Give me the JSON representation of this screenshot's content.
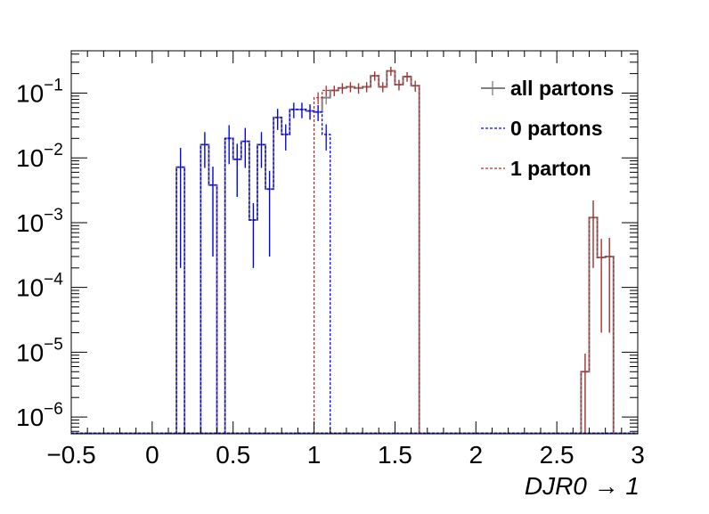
{
  "chart_data": {
    "type": "step",
    "title": "",
    "xlabel": "DJR0 → 1",
    "ylabel": "",
    "y_scale": "log",
    "xlim": [
      -0.5,
      3.0
    ],
    "ylim": [
      5.5e-07,
      0.45
    ],
    "bin_width": 0.05,
    "x_ticks": [
      {
        "value": -0.5,
        "label": "−0.5"
      },
      {
        "value": 0,
        "label": "0"
      },
      {
        "value": 0.5,
        "label": "0.5"
      },
      {
        "value": 1,
        "label": "1"
      },
      {
        "value": 1.5,
        "label": "1.5"
      },
      {
        "value": 2,
        "label": "2"
      },
      {
        "value": 2.5,
        "label": "2.5"
      },
      {
        "value": 3,
        "label": "3"
      }
    ],
    "y_ticks": [
      {
        "value": 1e-06,
        "base": "10",
        "exp": "−6"
      },
      {
        "value": 1e-05,
        "base": "10",
        "exp": "−5"
      },
      {
        "value": 0.0001,
        "base": "10",
        "exp": "−4"
      },
      {
        "value": 0.001,
        "base": "10",
        "exp": "−3"
      },
      {
        "value": 0.01,
        "base": "10",
        "exp": "−2"
      },
      {
        "value": 0.1,
        "base": "10",
        "exp": "−1"
      }
    ],
    "legend_position": "top-right",
    "series": [
      {
        "name": "all partons",
        "color": "#808080",
        "style": "solid",
        "bins": [
          {
            "x": 0.15,
            "y": 0.0072,
            "err": 0.007
          },
          {
            "x": 0.3,
            "y": 0.016,
            "err": 0.009
          },
          {
            "x": 0.35,
            "y": 0.0038,
            "err": 0.0035
          },
          {
            "x": 0.45,
            "y": 0.02,
            "err": 0.012
          },
          {
            "x": 0.5,
            "y": 0.0095,
            "err": 0.007
          },
          {
            "x": 0.55,
            "y": 0.018,
            "err": 0.011
          },
          {
            "x": 0.6,
            "y": 0.0011,
            "err": 0.0009
          },
          {
            "x": 0.65,
            "y": 0.016,
            "err": 0.009
          },
          {
            "x": 0.7,
            "y": 0.0033,
            "err": 0.003
          },
          {
            "x": 0.75,
            "y": 0.042,
            "err": 0.015
          },
          {
            "x": 0.8,
            "y": 0.023,
            "err": 0.01
          },
          {
            "x": 0.85,
            "y": 0.056,
            "err": 0.015
          },
          {
            "x": 0.9,
            "y": 0.056,
            "err": 0.015
          },
          {
            "x": 0.95,
            "y": 0.053,
            "err": 0.014
          },
          {
            "x": 1.0,
            "y": 0.051,
            "err": 0.014
          },
          {
            "x": 1.05,
            "y": 0.085,
            "err": 0.018
          },
          {
            "x": 1.1,
            "y": 0.11,
            "err": 0.02
          },
          {
            "x": 1.15,
            "y": 0.12,
            "err": 0.022
          },
          {
            "x": 1.2,
            "y": 0.125,
            "err": 0.022
          },
          {
            "x": 1.25,
            "y": 0.12,
            "err": 0.022
          },
          {
            "x": 1.3,
            "y": 0.125,
            "err": 0.022
          },
          {
            "x": 1.35,
            "y": 0.185,
            "err": 0.03
          },
          {
            "x": 1.4,
            "y": 0.125,
            "err": 0.022
          },
          {
            "x": 1.45,
            "y": 0.22,
            "err": 0.035
          },
          {
            "x": 1.5,
            "y": 0.135,
            "err": 0.025
          },
          {
            "x": 1.55,
            "y": 0.18,
            "err": 0.03
          },
          {
            "x": 1.6,
            "y": 0.13,
            "err": 0.025
          },
          {
            "x": 2.65,
            "y": 5e-06,
            "err": 4.5e-06
          },
          {
            "x": 2.7,
            "y": 0.0012,
            "err": 0.001
          },
          {
            "x": 2.75,
            "y": 0.00029,
            "err": 0.00027
          },
          {
            "x": 2.8,
            "y": 0.0003,
            "err": 0.00028
          }
        ]
      },
      {
        "name": "0 partons",
        "color": "#0000ff",
        "style": "dotted",
        "bins": [
          {
            "x": 0.15,
            "y": 0.0072,
            "err": 0.007
          },
          {
            "x": 0.3,
            "y": 0.016,
            "err": 0.009
          },
          {
            "x": 0.35,
            "y": 0.0038,
            "err": 0.0035
          },
          {
            "x": 0.45,
            "y": 0.02,
            "err": 0.012
          },
          {
            "x": 0.5,
            "y": 0.0095,
            "err": 0.007
          },
          {
            "x": 0.55,
            "y": 0.018,
            "err": 0.011
          },
          {
            "x": 0.6,
            "y": 0.0011,
            "err": 0.0009
          },
          {
            "x": 0.65,
            "y": 0.016,
            "err": 0.009
          },
          {
            "x": 0.7,
            "y": 0.0033,
            "err": 0.003
          },
          {
            "x": 0.75,
            "y": 0.042,
            "err": 0.015
          },
          {
            "x": 0.8,
            "y": 0.023,
            "err": 0.01
          },
          {
            "x": 0.85,
            "y": 0.056,
            "err": 0.015
          },
          {
            "x": 0.9,
            "y": 0.056,
            "err": 0.015
          },
          {
            "x": 0.95,
            "y": 0.053,
            "err": 0.014
          },
          {
            "x": 1.0,
            "y": 0.051,
            "err": 0.014
          },
          {
            "x": 1.05,
            "y": 0.023,
            "err": 0.01
          }
        ]
      },
      {
        "name": "1 parton",
        "color": "#b03030",
        "style": "dotted",
        "bins": [
          {
            "x": 1.0,
            "y": 0.085,
            "err": 0.018
          },
          {
            "x": 1.05,
            "y": 0.11,
            "err": 0.02
          },
          {
            "x": 1.1,
            "y": 0.11,
            "err": 0.02
          },
          {
            "x": 1.15,
            "y": 0.12,
            "err": 0.022
          },
          {
            "x": 1.2,
            "y": 0.125,
            "err": 0.022
          },
          {
            "x": 1.25,
            "y": 0.12,
            "err": 0.022
          },
          {
            "x": 1.3,
            "y": 0.125,
            "err": 0.022
          },
          {
            "x": 1.35,
            "y": 0.185,
            "err": 0.03
          },
          {
            "x": 1.4,
            "y": 0.125,
            "err": 0.022
          },
          {
            "x": 1.45,
            "y": 0.22,
            "err": 0.035
          },
          {
            "x": 1.5,
            "y": 0.135,
            "err": 0.025
          },
          {
            "x": 1.55,
            "y": 0.18,
            "err": 0.03
          },
          {
            "x": 1.6,
            "y": 0.13,
            "err": 0.025
          },
          {
            "x": 2.65,
            "y": 5e-06,
            "err": 4.5e-06
          },
          {
            "x": 2.7,
            "y": 0.0012,
            "err": 0.001
          },
          {
            "x": 2.75,
            "y": 0.00029,
            "err": 0.00027
          },
          {
            "x": 2.8,
            "y": 0.0003,
            "err": 0.00028
          }
        ]
      }
    ]
  }
}
